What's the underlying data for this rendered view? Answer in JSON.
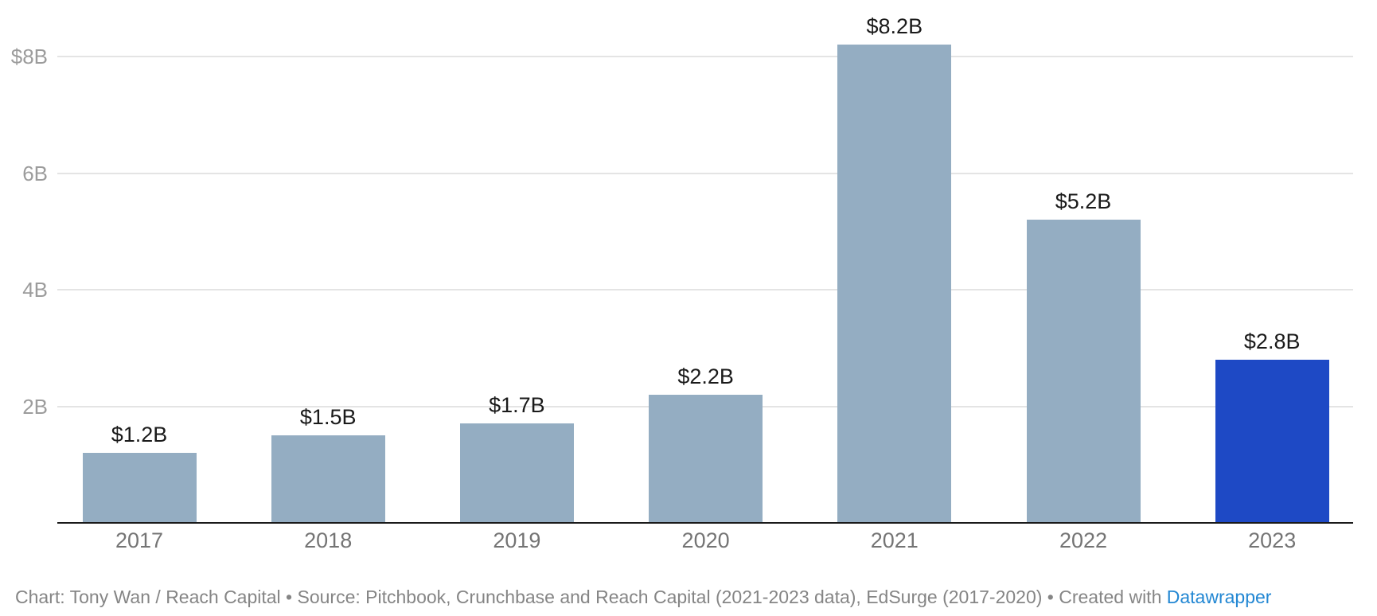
{
  "chart_data": {
    "type": "bar",
    "categories": [
      "2017",
      "2018",
      "2019",
      "2020",
      "2021",
      "2022",
      "2023"
    ],
    "values": [
      1.2,
      1.5,
      1.7,
      2.2,
      8.2,
      5.2,
      2.8
    ],
    "bar_labels": [
      "$1.2B",
      "$1.5B",
      "$1.7B",
      "$2.2B",
      "$8.2B",
      "$5.2B",
      "$2.8B"
    ],
    "highlight_category": "2023",
    "y_ticks": [
      {
        "label": "$8B",
        "value": 8
      },
      {
        "label": "6B",
        "value": 6
      },
      {
        "label": "4B",
        "value": 4
      },
      {
        "label": "2B",
        "value": 2
      }
    ],
    "ylim": [
      0,
      9
    ],
    "grid": "horizontal-on",
    "legend": "none",
    "title": "",
    "xlabel": "",
    "ylabel": "",
    "colors": {
      "bar_default": "#94adc2",
      "bar_highlight": "#1e49c5",
      "gridline": "#e4e4e4",
      "axis_line": "#1a1a1a",
      "value_label": "#1a1a1a",
      "x_tick_label": "#747474",
      "y_tick_label": "#9c9c9c"
    }
  },
  "footer": {
    "credit_text": "Chart: Tony Wan / Reach Capital • Source: Pitchbook, Crunchbase and Reach Capital (2021-2023 data), EdSurge (2017-2020) • Created with ",
    "link_label": "Datawrapper",
    "text_color": "#858585",
    "link_color": "#2287d3"
  }
}
